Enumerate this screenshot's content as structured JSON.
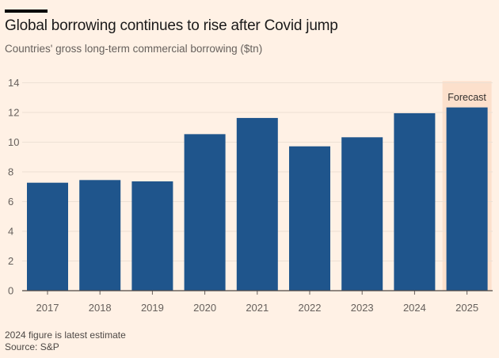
{
  "chart_data": {
    "type": "bar",
    "title": "Global borrowing continues to rise after Covid jump",
    "subtitle": "Countries' gross long-term commercial borrowing ($tn)",
    "categories": [
      "2017",
      "2018",
      "2019",
      "2020",
      "2021",
      "2022",
      "2023",
      "2024",
      "2025"
    ],
    "values": [
      7.27,
      7.45,
      7.36,
      10.54,
      11.63,
      9.72,
      10.33,
      11.95,
      12.34
    ],
    "ylim": [
      0,
      14
    ],
    "yticks": [
      0,
      2,
      4,
      6,
      8,
      10,
      12,
      14
    ],
    "xlabel": "",
    "ylabel": "",
    "grid": true,
    "annotation": {
      "label": "Forecast",
      "category": "2025"
    },
    "notes": [
      "2024 figure is latest estimate",
      "Source: S&P"
    ],
    "colors": {
      "bar": "#1f558c",
      "forecast_bg": "#fce0cc",
      "grid": "#ede0d4",
      "background": "#fff1e5"
    }
  }
}
